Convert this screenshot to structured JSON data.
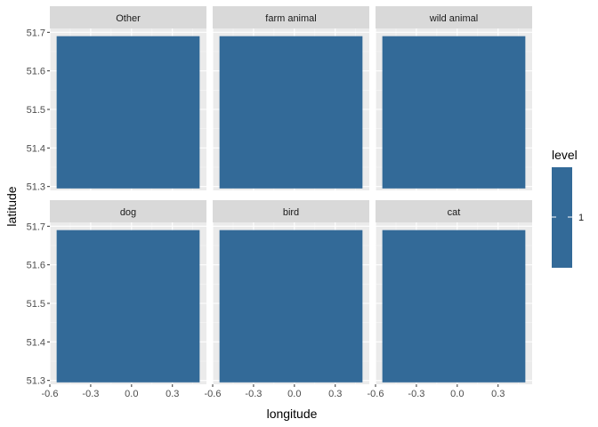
{
  "chart_data": {
    "type": "heatmap",
    "xlabel": "longitude",
    "ylabel": "latitude",
    "xlim": [
      -0.6,
      0.55
    ],
    "ylim": [
      51.29,
      51.71
    ],
    "x_ticks": [
      -0.6,
      -0.3,
      0.0,
      0.3
    ],
    "x_tick_labels": [
      "-0.6",
      "-0.3",
      "0.0",
      "0.3"
    ],
    "y_ticks": [
      51.3,
      51.4,
      51.5,
      51.6,
      51.7
    ],
    "y_tick_labels": [
      "51.3",
      "51.4",
      "51.5",
      "51.6",
      "51.7"
    ],
    "grid": true,
    "legend": {
      "title": "level",
      "position": "right",
      "labels": [
        "1"
      ],
      "color": "#336a98"
    },
    "facets": [
      {
        "label": "Other",
        "tile": {
          "xmin": -0.55,
          "xmax": 0.5,
          "ymin": 51.295,
          "ymax": 51.69,
          "level": 1
        }
      },
      {
        "label": "farm animal",
        "tile": {
          "xmin": -0.55,
          "xmax": 0.5,
          "ymin": 51.295,
          "ymax": 51.69,
          "level": 1
        }
      },
      {
        "label": "wild animal",
        "tile": {
          "xmin": -0.55,
          "xmax": 0.5,
          "ymin": 51.295,
          "ymax": 51.69,
          "level": 1
        }
      },
      {
        "label": "dog",
        "tile": {
          "xmin": -0.55,
          "xmax": 0.5,
          "ymin": 51.295,
          "ymax": 51.69,
          "level": 1
        }
      },
      {
        "label": "bird",
        "tile": {
          "xmin": -0.55,
          "xmax": 0.5,
          "ymin": 51.295,
          "ymax": 51.69,
          "level": 1
        }
      },
      {
        "label": "cat",
        "tile": {
          "xmin": -0.55,
          "xmax": 0.5,
          "ymin": 51.295,
          "ymax": 51.69,
          "level": 1
        }
      }
    ]
  }
}
